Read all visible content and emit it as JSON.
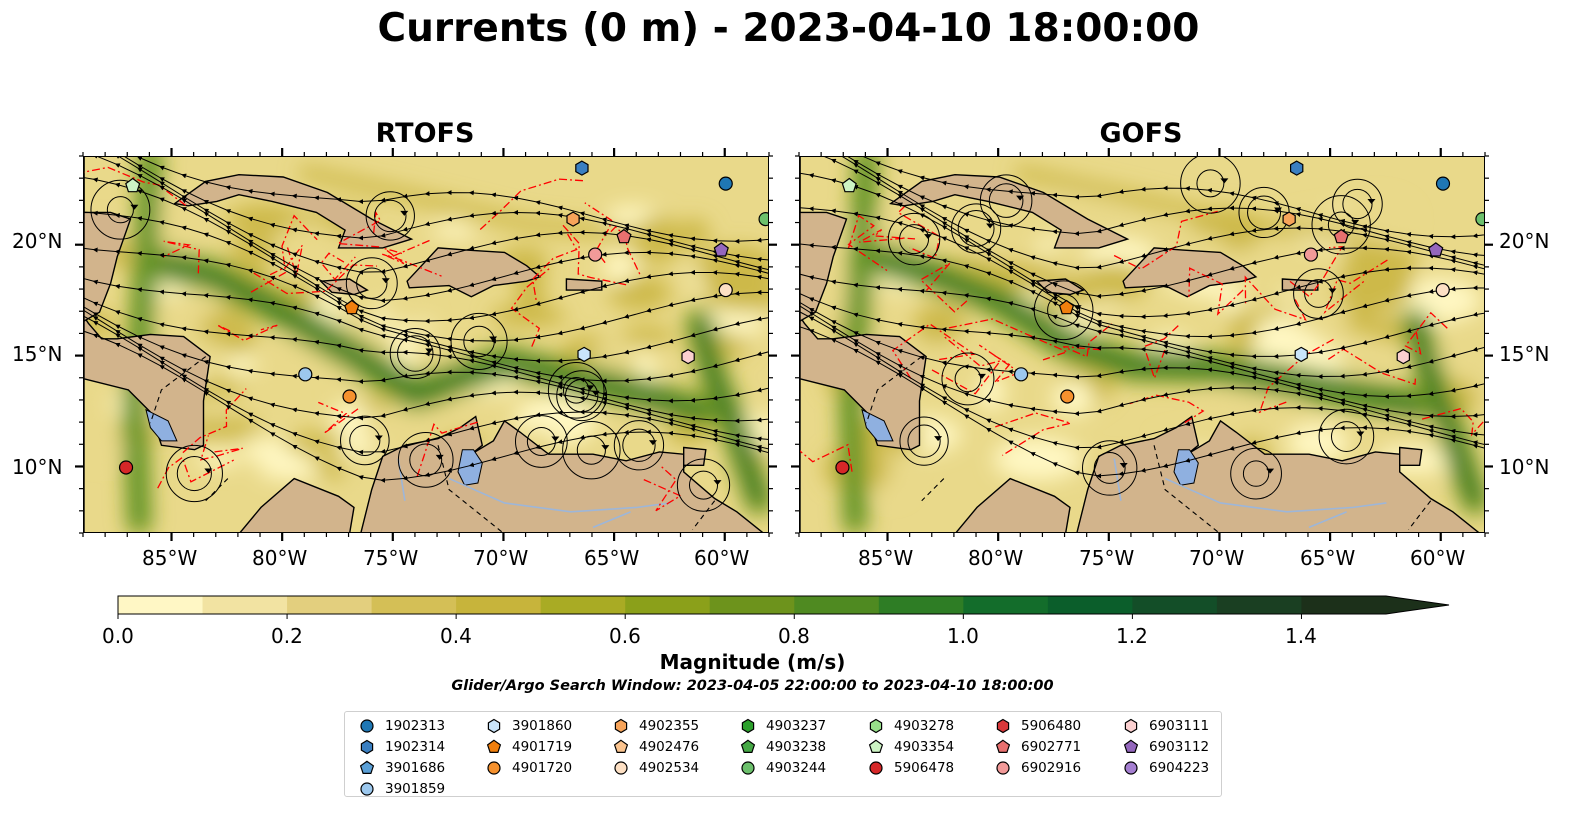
{
  "title": "Currents (0 m) - 2023-04-10 18:00:00",
  "panels": [
    {
      "title": "RTOFS"
    },
    {
      "title": "GOFS"
    }
  ],
  "map": {
    "lon_range": [
      -89,
      -58
    ],
    "lat_range": [
      7,
      24
    ],
    "lon_ticks": [
      "85°W",
      "80°W",
      "75°W",
      "70°W",
      "65°W",
      "60°W"
    ],
    "lon_tick_values": [
      -85,
      -80,
      -75,
      -70,
      -65,
      -60
    ],
    "lat_ticks": [
      "20°N",
      "15°N",
      "10°N"
    ],
    "lat_tick_values": [
      20,
      15,
      10
    ],
    "land_color": "#d2b48c",
    "water_colors": [
      "#fff7c2",
      "#e9d98a",
      "#cdb94a",
      "#86a11f",
      "#3a8a2a",
      "#0d5e2c"
    ],
    "streamline_color": "#000000",
    "eez_color": "#ff0000",
    "lake_color": "#8fb0e0"
  },
  "colorbar": {
    "title": "Magnitude (m/s)",
    "ticks": [
      "0.0",
      "0.2",
      "0.4",
      "0.6",
      "0.8",
      "1.0",
      "1.2",
      "1.4"
    ],
    "tick_values": [
      0.0,
      0.2,
      0.4,
      0.6,
      0.8,
      1.0,
      1.2,
      1.4
    ],
    "range": [
      0.0,
      1.5
    ],
    "extend": "max",
    "colors": [
      "#fff7c5",
      "#f2e3a2",
      "#e3cf7e",
      "#d4bf56",
      "#c7b43b",
      "#a9ab24",
      "#8ba01a",
      "#6d931c",
      "#4f8a21",
      "#2e7d25",
      "#136d2b",
      "#0b5e2b",
      "#134e28",
      "#1a3f22",
      "#1c301a"
    ]
  },
  "search_window": "Glider/Argo Search Window: 2023-04-05 22:00:00 to 2023-04-10 18:00:00",
  "legend": {
    "items": [
      {
        "label": "1902313",
        "marker": "circle",
        "color": "#1f77b4"
      },
      {
        "label": "1902314",
        "marker": "hexagon",
        "color": "#3a7fc1"
      },
      {
        "label": "3901686",
        "marker": "pentagon",
        "color": "#5a9fd6"
      },
      {
        "label": "3901859",
        "marker": "circle",
        "color": "#9cc8ee"
      },
      {
        "label": "3901860",
        "marker": "hexagon",
        "color": "#c9e4fa"
      },
      {
        "label": "4901719",
        "marker": "pentagon",
        "color": "#f07f0e"
      },
      {
        "label": "4901720",
        "marker": "circle",
        "color": "#f5912e"
      },
      {
        "label": "4902355",
        "marker": "hexagon",
        "color": "#f7a45a"
      },
      {
        "label": "4902476",
        "marker": "pentagon",
        "color": "#fbc48f"
      },
      {
        "label": "4902534",
        "marker": "circle",
        "color": "#fde0c4"
      },
      {
        "label": "4903237",
        "marker": "hexagon",
        "color": "#2ca02c"
      },
      {
        "label": "4903238",
        "marker": "pentagon",
        "color": "#45a845"
      },
      {
        "label": "4903244",
        "marker": "circle",
        "color": "#6cc06c"
      },
      {
        "label": "4903278",
        "marker": "hexagon",
        "color": "#98df8a"
      },
      {
        "label": "4903354",
        "marker": "pentagon",
        "color": "#cdf4c4"
      },
      {
        "label": "5906478",
        "marker": "circle",
        "color": "#d62728"
      },
      {
        "label": "5906480",
        "marker": "hexagon",
        "color": "#d8383a"
      },
      {
        "label": "6902771",
        "marker": "pentagon",
        "color": "#e8706f"
      },
      {
        "label": "6902916",
        "marker": "circle",
        "color": "#f29a99"
      },
      {
        "label": "6903111",
        "marker": "hexagon",
        "color": "#fbd0d0"
      },
      {
        "label": "6903112",
        "marker": "pentagon",
        "color": "#9467bd"
      },
      {
        "label": "6904223",
        "marker": "circle",
        "color": "#a57fd1"
      }
    ]
  },
  "floats": [
    {
      "id": "5906478",
      "lon": -87.1,
      "lat": 10.0
    },
    {
      "id": "4903354",
      "lon": -86.8,
      "lat": 22.7
    },
    {
      "id": "3901859",
      "lon": -79.0,
      "lat": 14.2
    },
    {
      "id": "4901720",
      "lon": -77.0,
      "lat": 13.2
    },
    {
      "id": "4901719",
      "lon": -76.9,
      "lat": 17.2
    },
    {
      "id": "1902314",
      "lon": -66.5,
      "lat": 23.5
    },
    {
      "id": "4902355",
      "lon": -66.9,
      "lat": 21.2
    },
    {
      "id": "6902916",
      "lon": -65.9,
      "lat": 19.6
    },
    {
      "id": "6902771",
      "lon": -64.6,
      "lat": 20.4
    },
    {
      "id": "3901860",
      "lon": -66.4,
      "lat": 15.1
    },
    {
      "id": "1902313",
      "lon": -60.0,
      "lat": 22.8
    },
    {
      "id": "4903244",
      "lon": -58.2,
      "lat": 21.2
    },
    {
      "id": "6903112",
      "lon": -60.2,
      "lat": 19.8
    },
    {
      "id": "4902534",
      "lon": -60.0,
      "lat": 18.0
    },
    {
      "id": "6903111",
      "lon": -61.7,
      "lat": 15.0
    }
  ]
}
